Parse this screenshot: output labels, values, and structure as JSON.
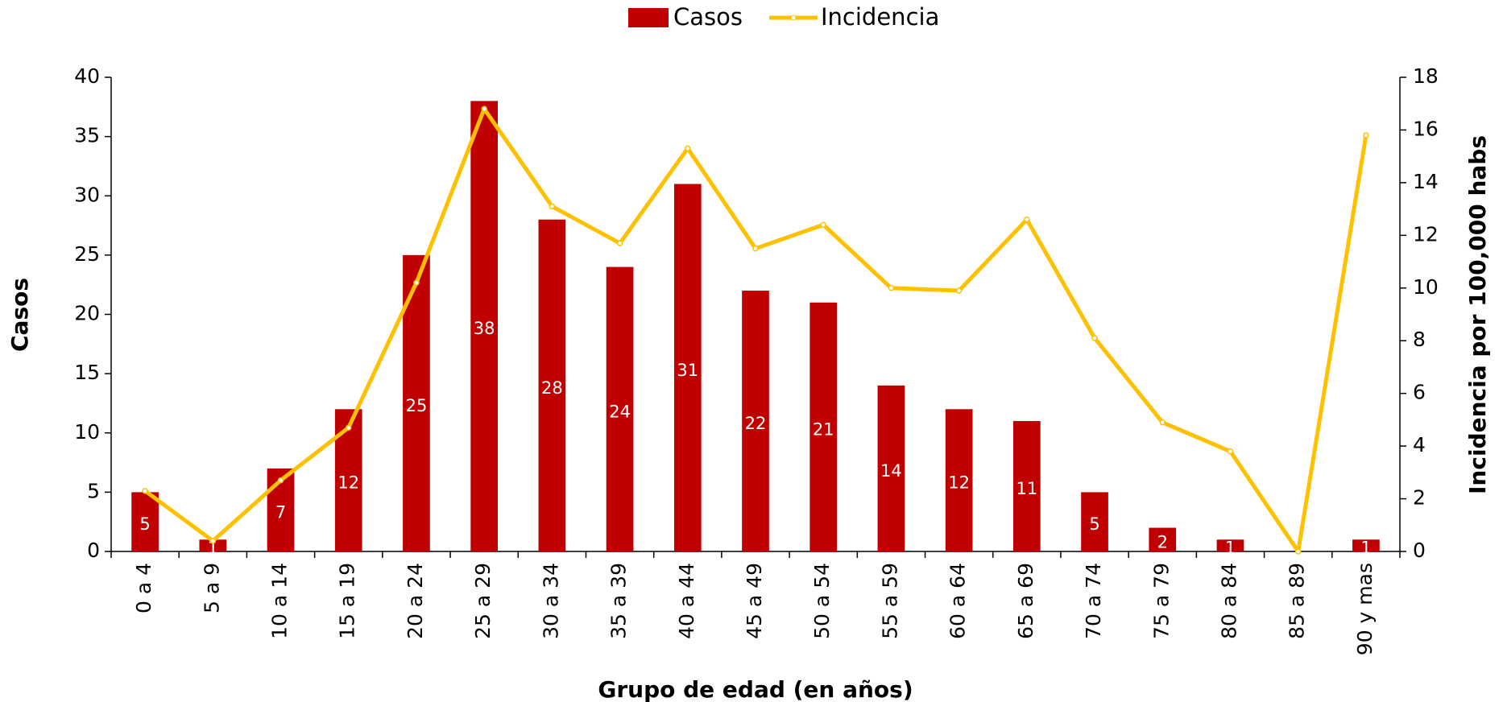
{
  "chart_data": {
    "type": "bar",
    "x_label": "Grupo de edad (en años)",
    "y_label": "Casos",
    "y2_label": "Incidencia por 100,000 habs",
    "categories": [
      "0 a 4",
      "5 a 9",
      "10 a 14",
      "15 a 19",
      "20 a 24",
      "25 a 29",
      "30 a 34",
      "35 a 39",
      "40 a 44",
      "45 a 49",
      "50 a 54",
      "55 a 59",
      "60 a 64",
      "65 a 69",
      "70 a 74",
      "75 a 79",
      "80 a 84",
      "85 a 89",
      "90 y mas"
    ],
    "series": [
      {
        "name": "Casos",
        "type": "bar",
        "color": "#c00000",
        "values": [
          5,
          1,
          7,
          12,
          25,
          38,
          28,
          24,
          31,
          22,
          21,
          14,
          12,
          11,
          5,
          2,
          1,
          0,
          1
        ]
      },
      {
        "name": "Incidencia",
        "type": "line",
        "axis": "y2",
        "color": "#ffc000",
        "values": [
          2.3,
          0.4,
          2.7,
          4.7,
          10.2,
          16.8,
          13.1,
          11.7,
          15.3,
          11.5,
          12.4,
          10.0,
          9.9,
          12.6,
          8.1,
          4.9,
          3.8,
          0,
          15.8
        ]
      }
    ],
    "ylim": [
      0,
      40
    ],
    "yticks": [
      0,
      5,
      10,
      15,
      20,
      25,
      30,
      35,
      40
    ],
    "y2lim": [
      0,
      18
    ],
    "y2ticks": [
      0,
      2,
      4,
      6,
      8,
      10,
      12,
      14,
      16,
      18
    ],
    "legend": "top"
  }
}
